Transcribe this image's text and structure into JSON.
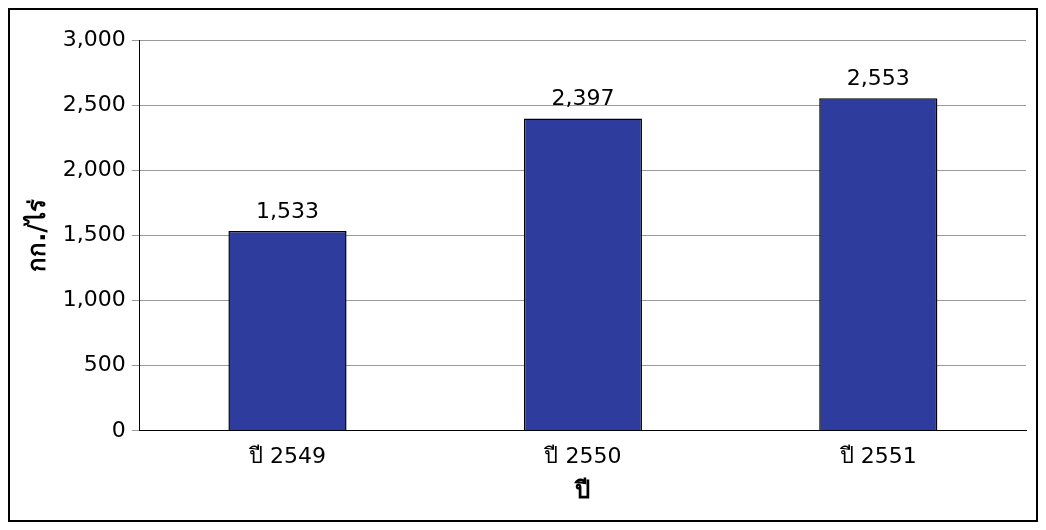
{
  "chart_data": {
    "type": "bar",
    "xlabel": "ปี",
    "ylabel": "กก./ไร่",
    "categories": [
      "ปี 2549",
      "ปี 2550",
      "ปี 2551"
    ],
    "values": [
      1533,
      2397,
      2553
    ],
    "color": "#2e3c9e",
    "ylim": [
      0,
      3000
    ],
    "yticks": [
      {
        "value": 0,
        "label": "0"
      },
      {
        "value": 500,
        "label": "500"
      },
      {
        "value": 1000,
        "label": "1,000"
      },
      {
        "value": 1500,
        "label": "1,500"
      },
      {
        "value": 2000,
        "label": "2,000"
      },
      {
        "value": 2500,
        "label": "2,500"
      },
      {
        "value": 3000,
        "label": "3,000"
      }
    ],
    "value_labels": [
      "1,533",
      "2,397",
      "2,553"
    ],
    "grid": "y",
    "legend": false
  }
}
